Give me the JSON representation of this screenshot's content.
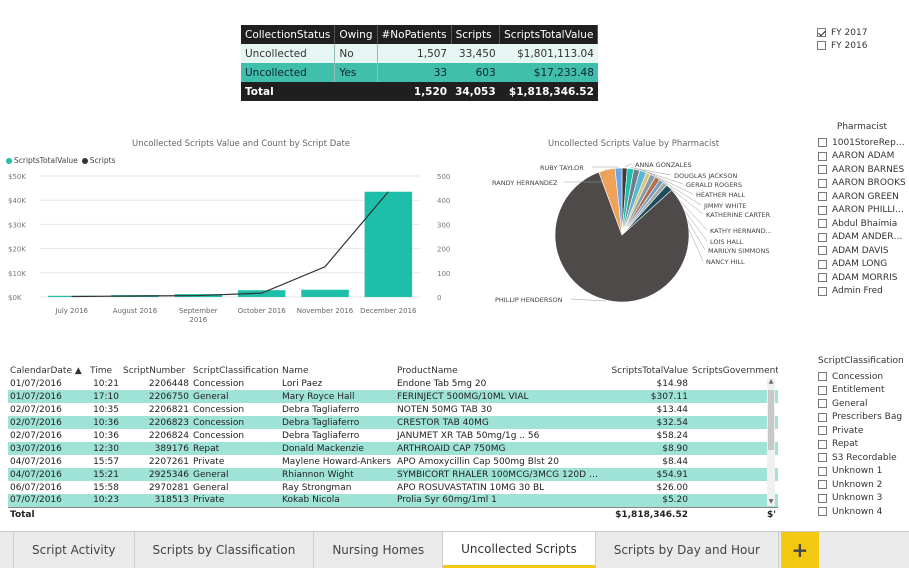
{
  "summary": {
    "headers": [
      "CollectionStatus",
      "Owing",
      "#NoPatients",
      "Scripts",
      "ScriptsTotalValue"
    ],
    "rows": [
      [
        "Uncollected",
        "No",
        "1,507",
        "33,450",
        "$1,801,113.04"
      ],
      [
        "Uncollected",
        "Yes",
        "33",
        "603",
        "$17,233.48"
      ]
    ],
    "total": [
      "Total",
      "",
      "1,520",
      "34,053",
      "$1,818,346.52"
    ]
  },
  "fy_slicer": {
    "options": [
      {
        "label": "FY 2017",
        "checked": true
      },
      {
        "label": "FY 2016",
        "checked": false
      }
    ]
  },
  "combo_chart": {
    "title": "Uncollected Scripts Value and Count by Script Date",
    "legend": [
      "ScriptsTotalValue",
      "Scripts"
    ],
    "colors": {
      "bar": "#1ebfaa",
      "line": "#333333"
    }
  },
  "pie_chart": {
    "title": "Uncollected Scripts Value by Pharmacist"
  },
  "chart_data": [
    {
      "type": "bar",
      "title": "Uncollected Scripts Value and Count by Script Date",
      "categories": [
        "July 2016",
        "August 2016",
        "September 2016",
        "October 2016",
        "November 2016",
        "December 2016"
      ],
      "series": [
        {
          "name": "ScriptsTotalValue",
          "values": [
            500,
            800,
            1200,
            2800,
            3000,
            43500
          ]
        },
        {
          "name": "Scripts",
          "values": [
            2,
            4,
            6,
            16,
            125,
            435
          ]
        }
      ],
      "y_left_ticks": [
        "$0K",
        "$10K",
        "$20K",
        "$30K",
        "$40K",
        "$50K"
      ],
      "y_right_ticks": [
        "0",
        "100",
        "200",
        "300",
        "400",
        "500"
      ],
      "ylim_left": [
        0,
        50000
      ],
      "ylim_right": [
        0,
        500
      ],
      "legend_position": "top-left",
      "grid": true
    },
    {
      "type": "pie",
      "title": "Uncollected Scripts Value by Pharmacist",
      "slices": [
        {
          "label": "ANNA GONZALES",
          "value": 1.2,
          "color": "#3a3a3a"
        },
        {
          "label": "DOUGLAS JACKSON",
          "value": 1.5,
          "color": "#1ebfaa"
        },
        {
          "label": "GERALD ROGERS",
          "value": 1.4,
          "color": "#6f7f8a"
        },
        {
          "label": "HEATHER HALL",
          "value": 1.6,
          "color": "#5bb8d4"
        },
        {
          "label": "JIMMY WHITE",
          "value": 1.0,
          "color": "#d8c47a"
        },
        {
          "label": "KATHERINE CARTER",
          "value": 1.3,
          "color": "#8a9aa8"
        },
        {
          "label": "KATHY HERNAND...",
          "value": 1.2,
          "color": "#b07050"
        },
        {
          "label": "LOIS HALL",
          "value": 1.0,
          "color": "#6fa0c0"
        },
        {
          "label": "MARILYN SIMMONS",
          "value": 1.0,
          "color": "#a6a6a6"
        },
        {
          "label": "NANCY HILL",
          "value": 1.6,
          "color": "#1f4b5c"
        },
        {
          "label": "PHILLIP HENDERSON",
          "value": 78.0,
          "color": "#4f4a4a"
        },
        {
          "label": "RANDY HERNANDEZ",
          "value": 3.8,
          "color": "#f0a25a"
        },
        {
          "label": "RUBY TAYLOR",
          "value": 1.6,
          "color": "#6aa7e8"
        }
      ]
    }
  ],
  "pharmacist_slicer": {
    "title": "Pharmacist",
    "options": [
      "1001StoreRepo...",
      "AARON ADAM",
      "AARON BARNES",
      "AARON BROOKS",
      "AARON GREEN",
      "AARON PHILLIPS",
      "Abdul Bhaimia",
      "ADAM ANDERS...",
      "ADAM DAVIS",
      "ADAM LONG",
      "ADAM MORRIS",
      "Admin Fred"
    ]
  },
  "classification_slicer": {
    "title": "ScriptClassification",
    "options": [
      "Concession",
      "Entitlement",
      "General",
      "Prescribers Bag",
      "Private",
      "Repat",
      "S3 Recordable",
      "Unknown 1",
      "Unknown 2",
      "Unknown 3",
      "Unknown 4"
    ]
  },
  "detail": {
    "headers": [
      "CalendarDate",
      "Time",
      "ScriptNumber",
      "ScriptClassification",
      "Name",
      "ProductName",
      "ScriptsTotalValue",
      "ScriptsGovernment"
    ],
    "sort_indicator": "▲",
    "rows": [
      [
        "01/07/2016",
        "10:21",
        "2206448",
        "Concession",
        "Lori Paez",
        "Endone Tab 5mg 20",
        "$14.98",
        ""
      ],
      [
        "01/07/2016",
        "17:10",
        "2206750",
        "General",
        "Mary Royce Hall",
        "FERINJECT 500MG/10ML VIAL",
        "$307.11",
        ""
      ],
      [
        "02/07/2016",
        "10:35",
        "2206821",
        "Concession",
        "Debra Tagliaferro",
        "NOTEN 50MG TAB 30",
        "$13.44",
        ""
      ],
      [
        "02/07/2016",
        "10:36",
        "2206823",
        "Concession",
        "Debra Tagliaferro",
        "CRESTOR TAB 40MG",
        "$32.54",
        ""
      ],
      [
        "02/07/2016",
        "10:36",
        "2206824",
        "Concession",
        "Debra Tagliaferro",
        "JANUMET XR TAB 50mg/1g .. 56",
        "$58.24",
        ""
      ],
      [
        "03/07/2016",
        "12:30",
        "389176",
        "Repat",
        "Donald Mackenzie",
        "ARTHROAID CAP 750MG",
        "$8.90",
        ""
      ],
      [
        "04/07/2016",
        "15:57",
        "2207261",
        "Private",
        "Maylene Howard-Ankers",
        "APO Amoxycillin Cap 500mg Blst 20",
        "$8.44",
        ""
      ],
      [
        "04/07/2016",
        "15:21",
        "2925346",
        "General",
        "Rhiannon Wight",
        "SYMBICORT RHALER 100MCG/3MCG 120D X 1 ..",
        "$54.91",
        ""
      ],
      [
        "06/07/2016",
        "15:58",
        "2970281",
        "General",
        "Ray Strongman",
        "APO ROSUVASTATIN 10MG 30 BL",
        "$26.00",
        ""
      ],
      [
        "07/07/2016",
        "10:23",
        "318513",
        "Private",
        "Kokab Nicola",
        "Prolia Syr 60mg/1ml 1",
        "$5.20",
        ""
      ]
    ],
    "total_label": "Total",
    "total_value": "$1,818,346.52",
    "total_trailing": "$'"
  },
  "tabs": {
    "items": [
      "Script Activity",
      "Scripts by Classification",
      "Nursing Homes",
      "Uncollected Scripts",
      "Scripts by Day and Hour"
    ],
    "active": "Uncollected Scripts",
    "add_label": "+"
  }
}
